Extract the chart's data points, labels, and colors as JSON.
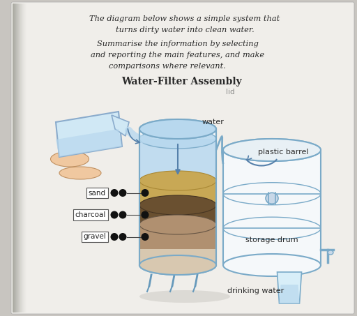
{
  "title_line1": "The diagram below shows a simple system that",
  "title_line2": "turns dirty water into clean water.",
  "subtitle_line1": "Summarise the information by selecting",
  "subtitle_line2": "and reporting the main features, and make",
  "subtitle_line3": "comparisons where relevant.",
  "diagram_title": "Water-Filter Assembly",
  "diagram_subtitle": "lid",
  "label_water": "water",
  "label_plastic_barrel": "plastic barrel",
  "label_sand": "sand",
  "label_charcoal": "charcoal",
  "label_gravel": "gravel",
  "label_storage_drum": "storage drum",
  "label_drinking_water": "drinking water",
  "text_color": "#2a2a2a",
  "barrel_edge_color": "#7aaac8",
  "barrel_fill_white": "#f5f8fa",
  "water_blue": "#b8d8ee",
  "sand_color": "#c8a855",
  "charcoal_color": "#6a5030",
  "gravel_color": "#b09070",
  "gravel_bottom_color": "#d8c8b0",
  "arrow_color": "#5580aa",
  "dot_color": "#111111",
  "page_bg": "#f0eeea",
  "outer_bg": "#c8c5c0"
}
